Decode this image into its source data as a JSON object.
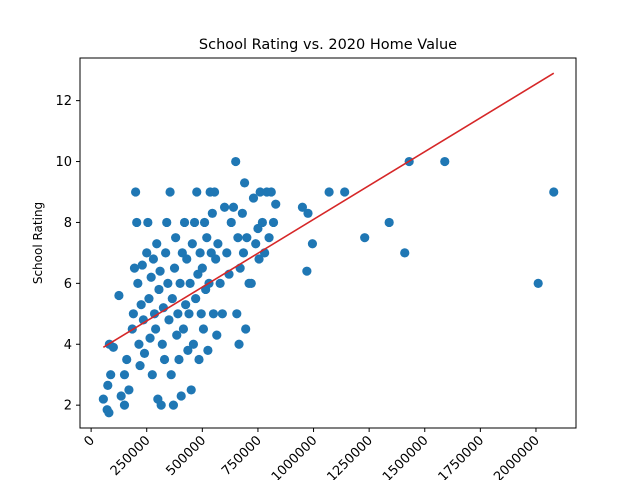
{
  "chart_data": {
    "type": "scatter",
    "title": "School Rating vs. 2020 Home Value",
    "xlabel": "",
    "ylabel": "School Rating",
    "xlim": [
      -50000,
      2180000
    ],
    "ylim": [
      1.25,
      13.4
    ],
    "x_ticks": [
      0,
      250000,
      500000,
      750000,
      1000000,
      1250000,
      1500000,
      1750000,
      2000000
    ],
    "x_tick_labels": [
      "0",
      "250000",
      "500000",
      "750000",
      "1000000",
      "1250000",
      "1500000",
      "1750000",
      "2000000"
    ],
    "y_ticks": [
      2,
      4,
      6,
      8,
      10,
      12
    ],
    "y_tick_labels": [
      "2",
      "4",
      "6",
      "8",
      "10",
      "12"
    ],
    "grid": false,
    "colors": {
      "points": "#1f77b4",
      "regression": "#d62728"
    },
    "regression_line": {
      "x": [
        55000,
        2080000
      ],
      "y": [
        3.9,
        12.9
      ]
    },
    "series": [
      {
        "points": [
          [
            55000,
            2.2
          ],
          [
            72000,
            1.85
          ],
          [
            80000,
            1.75
          ],
          [
            75000,
            2.65
          ],
          [
            88000,
            3.0
          ],
          [
            82000,
            4.0
          ],
          [
            100000,
            3.9
          ],
          [
            125000,
            5.6
          ],
          [
            135000,
            2.3
          ],
          [
            150000,
            2.0
          ],
          [
            150000,
            3.0
          ],
          [
            160000,
            3.5
          ],
          [
            170000,
            2.5
          ],
          [
            185000,
            4.5
          ],
          [
            190000,
            5.0
          ],
          [
            195000,
            6.5
          ],
          [
            200000,
            9.0
          ],
          [
            205000,
            8.0
          ],
          [
            210000,
            6.0
          ],
          [
            215000,
            4.0
          ],
          [
            220000,
            3.3
          ],
          [
            225000,
            5.3
          ],
          [
            230000,
            6.6
          ],
          [
            235000,
            4.8
          ],
          [
            240000,
            3.7
          ],
          [
            250000,
            7.0
          ],
          [
            255000,
            8.0
          ],
          [
            260000,
            5.5
          ],
          [
            265000,
            4.2
          ],
          [
            270000,
            6.2
          ],
          [
            275000,
            3.0
          ],
          [
            280000,
            6.8
          ],
          [
            285000,
            5.0
          ],
          [
            290000,
            4.5
          ],
          [
            295000,
            7.3
          ],
          [
            300000,
            2.2
          ],
          [
            305000,
            5.8
          ],
          [
            310000,
            6.4
          ],
          [
            315000,
            2.0
          ],
          [
            320000,
            4.0
          ],
          [
            325000,
            5.2
          ],
          [
            330000,
            3.5
          ],
          [
            335000,
            7.0
          ],
          [
            340000,
            8.0
          ],
          [
            345000,
            6.0
          ],
          [
            350000,
            4.8
          ],
          [
            355000,
            9.0
          ],
          [
            360000,
            3.0
          ],
          [
            365000,
            5.5
          ],
          [
            370000,
            2.0
          ],
          [
            375000,
            6.5
          ],
          [
            380000,
            7.5
          ],
          [
            385000,
            4.3
          ],
          [
            390000,
            5.0
          ],
          [
            395000,
            3.5
          ],
          [
            400000,
            6.0
          ],
          [
            405000,
            2.3
          ],
          [
            410000,
            7.0
          ],
          [
            415000,
            4.5
          ],
          [
            420000,
            8.0
          ],
          [
            425000,
            5.3
          ],
          [
            430000,
            6.8
          ],
          [
            435000,
            3.8
          ],
          [
            440000,
            5.0
          ],
          [
            445000,
            6.0
          ],
          [
            450000,
            2.5
          ],
          [
            455000,
            7.3
          ],
          [
            460000,
            4.0
          ],
          [
            465000,
            8.0
          ],
          [
            470000,
            5.5
          ],
          [
            475000,
            9.0
          ],
          [
            480000,
            6.3
          ],
          [
            485000,
            3.5
          ],
          [
            490000,
            7.0
          ],
          [
            495000,
            5.0
          ],
          [
            500000,
            6.5
          ],
          [
            505000,
            4.5
          ],
          [
            510000,
            8.0
          ],
          [
            515000,
            5.8
          ],
          [
            520000,
            7.5
          ],
          [
            525000,
            3.8
          ],
          [
            530000,
            6.0
          ],
          [
            535000,
            9.0
          ],
          [
            540000,
            7.0
          ],
          [
            545000,
            8.3
          ],
          [
            550000,
            5.0
          ],
          [
            555000,
            9.0
          ],
          [
            560000,
            6.8
          ],
          [
            565000,
            4.3
          ],
          [
            570000,
            7.3
          ],
          [
            580000,
            6.0
          ],
          [
            590000,
            5.0
          ],
          [
            600000,
            8.5
          ],
          [
            610000,
            7.0
          ],
          [
            620000,
            6.3
          ],
          [
            630000,
            8.0
          ],
          [
            640000,
            8.5
          ],
          [
            650000,
            10.0
          ],
          [
            655000,
            5.0
          ],
          [
            660000,
            7.5
          ],
          [
            665000,
            4.0
          ],
          [
            670000,
            6.5
          ],
          [
            680000,
            8.3
          ],
          [
            685000,
            7.0
          ],
          [
            690000,
            9.3
          ],
          [
            695000,
            4.5
          ],
          [
            700000,
            7.5
          ],
          [
            710000,
            6.0
          ],
          [
            720000,
            6.0
          ],
          [
            730000,
            8.8
          ],
          [
            740000,
            7.3
          ],
          [
            750000,
            7.8
          ],
          [
            755000,
            6.8
          ],
          [
            760000,
            9.0
          ],
          [
            770000,
            8.0
          ],
          [
            780000,
            7.0
          ],
          [
            790000,
            9.0
          ],
          [
            800000,
            7.5
          ],
          [
            810000,
            9.0
          ],
          [
            820000,
            8.0
          ],
          [
            830000,
            8.6
          ],
          [
            950000,
            8.5
          ],
          [
            970000,
            6.4
          ],
          [
            975000,
            8.3
          ],
          [
            995000,
            7.3
          ],
          [
            1070000,
            9.0
          ],
          [
            1140000,
            9.0
          ],
          [
            1230000,
            7.5
          ],
          [
            1340000,
            8.0
          ],
          [
            1410000,
            7.0
          ],
          [
            1430000,
            10.0
          ],
          [
            1590000,
            10.0
          ],
          [
            2010000,
            6.0
          ],
          [
            2080000,
            9.0
          ]
        ]
      }
    ]
  }
}
